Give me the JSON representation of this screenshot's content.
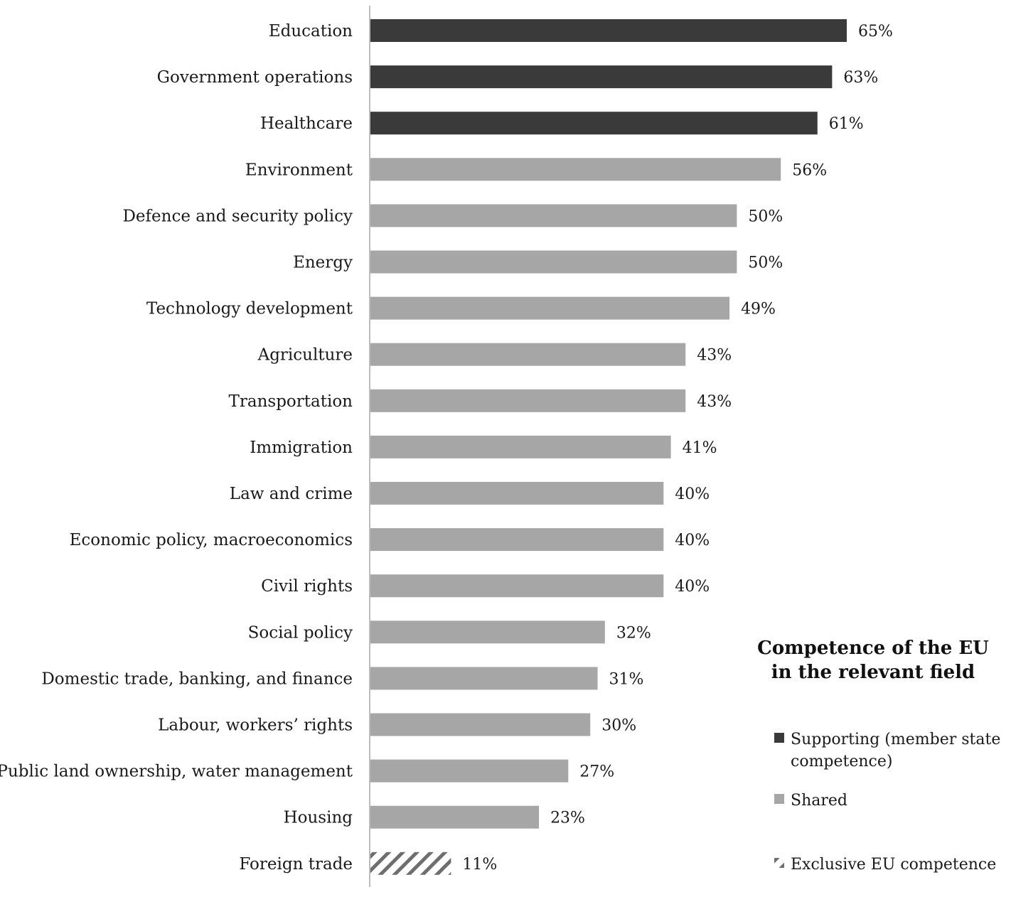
{
  "chart_data": {
    "type": "bar",
    "orientation": "horizontal",
    "categories": [
      "Education",
      "Government operations",
      "Healthcare",
      "Environment",
      "Defence and security policy",
      "Energy",
      "Technology development",
      "Agriculture",
      "Transportation",
      "Immigration",
      "Law and crime",
      "Economic policy, macroeconomics",
      "Civil rights",
      "Social policy",
      "Domestic trade, banking, and finance",
      "Labour, workers’ rights",
      "Public land ownership, water management",
      "Housing",
      "Foreign trade"
    ],
    "values": [
      65,
      63,
      61,
      56,
      50,
      50,
      49,
      43,
      43,
      41,
      40,
      40,
      40,
      32,
      31,
      30,
      27,
      23,
      11
    ],
    "value_labels": [
      "65%",
      "63%",
      "61%",
      "56%",
      "50%",
      "50%",
      "49%",
      "43%",
      "43%",
      "41%",
      "40%",
      "40%",
      "40%",
      "32%",
      "31%",
      "30%",
      "27%",
      "23%",
      "11%"
    ],
    "groups": [
      "supporting",
      "supporting",
      "supporting",
      "shared",
      "shared",
      "shared",
      "shared",
      "shared",
      "shared",
      "shared",
      "shared",
      "shared",
      "shared",
      "shared",
      "shared",
      "shared",
      "shared",
      "shared",
      "exclusive"
    ],
    "legend": {
      "title_line1": "Competence of the EU",
      "title_line2": "in the relevant field",
      "placement": "bottom-right",
      "entries": [
        {
          "key": "supporting",
          "line1": "Supporting (member state",
          "line2": "competence)",
          "color": "#3a3a3a",
          "pattern": "solid"
        },
        {
          "key": "shared",
          "line1": "Shared",
          "line2": "",
          "color": "#a6a6a6",
          "pattern": "solid"
        },
        {
          "key": "exclusive",
          "line1": "Exclusive EU competence",
          "line2": "",
          "color": "#6e6e6e",
          "pattern": "hatched"
        }
      ]
    },
    "xlim": [
      0,
      65
    ],
    "grid": false,
    "title": "",
    "xlabel": "",
    "ylabel": ""
  }
}
